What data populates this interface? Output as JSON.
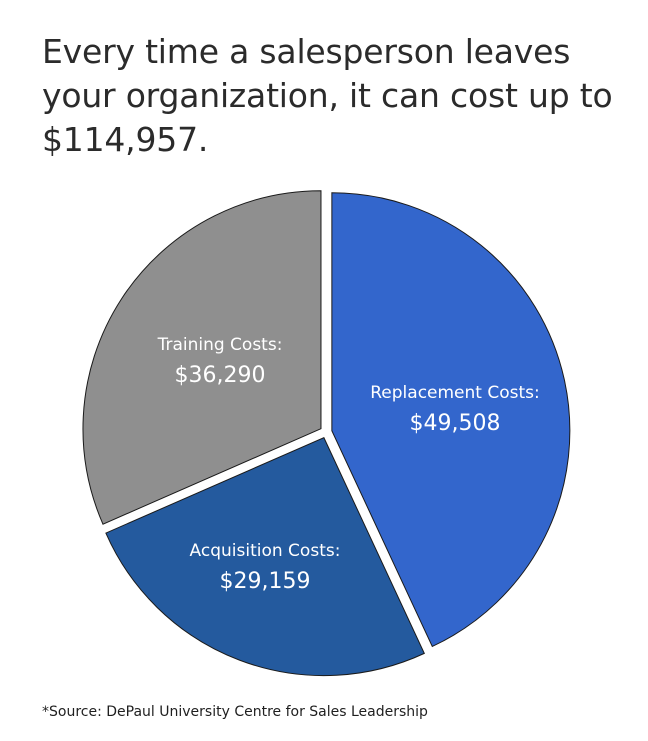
{
  "title": "Every time a salesperson leaves your organization, it can cost up to $114,957.",
  "source": "*Source: DePaul University Centre for Sales Leadership",
  "chart_data": {
    "type": "pie",
    "title": "",
    "slices": [
      {
        "label": "Replacement Costs:",
        "value_text": "$49,508",
        "value": 49508,
        "color": "#3366cc"
      },
      {
        "label": "Acquisition Costs:",
        "value_text": "$29,159",
        "value": 29159,
        "color": "#245a9e"
      },
      {
        "label": "Training Costs:",
        "value_text": "$36,290",
        "value": 36290,
        "color": "#8f8f8f"
      }
    ],
    "start_angle_deg": 0,
    "direction": "clockwise",
    "outline_color": "#1a1a1a",
    "separator_color": "#ffffff"
  }
}
